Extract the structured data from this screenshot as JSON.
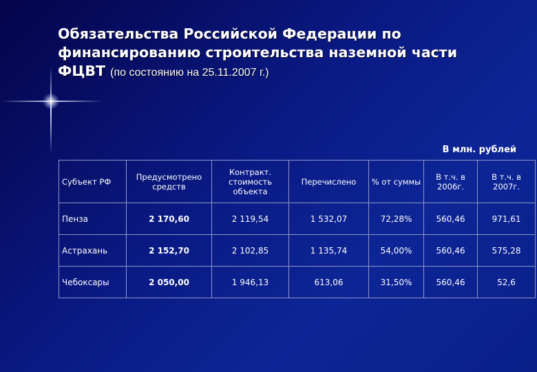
{
  "slide": {
    "title_line1": "Обязательства Российской Федерации  по",
    "title_line2": "финансированию строительства наземной части",
    "title_line3_bold": "ФЦВТ",
    "title_line3_subtitle": "(по состоянию на 25.11.2007 г.)",
    "units": "В млн. рублей"
  },
  "table": {
    "headers": [
      "Субъект РФ",
      "Предусмотрено средств",
      "Контракт. стоимость объекта",
      "Перечислено",
      "% от суммы",
      "В т.ч. в 2006г.",
      "В т.ч. в 2007г."
    ],
    "rows": [
      [
        "Пенза",
        "2 170,60",
        "2 119,54",
        "1 532,07",
        "72,28%",
        "560,46",
        "971,61"
      ],
      [
        "Астрахань",
        "2 152,70",
        "2 102,85",
        "1 135,74",
        "54,00%",
        "560,46",
        "575,28"
      ],
      [
        "Чебоксары",
        "2 050,00",
        "1 946,13",
        "613,06",
        "31,50%",
        "560,46",
        "52,6"
      ]
    ]
  }
}
